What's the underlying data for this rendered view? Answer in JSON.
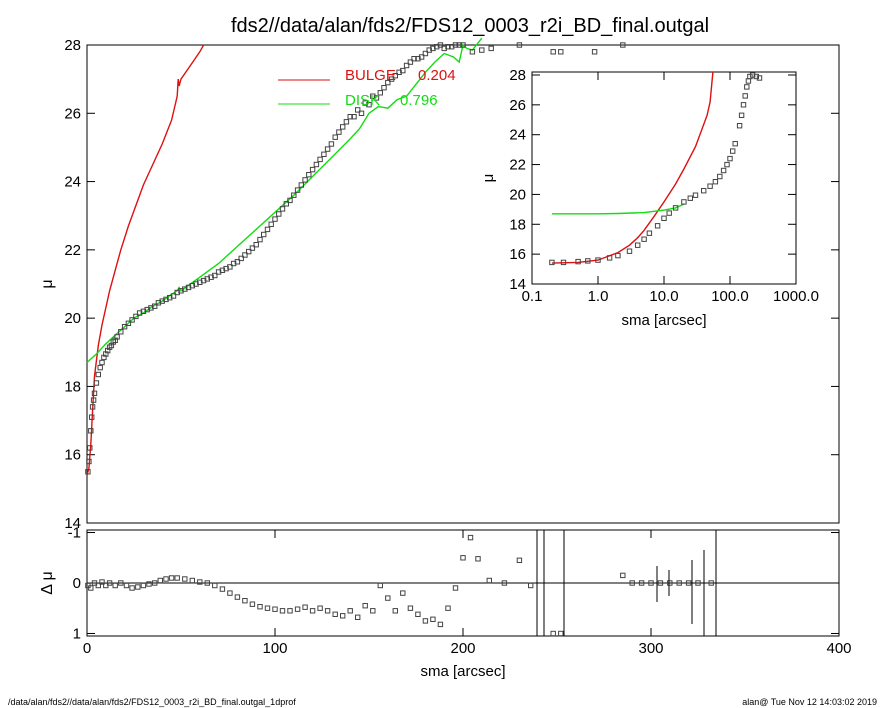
{
  "title": "fds2//data/alan/fds2/FDS12_0003_r2i_BD_final.outgal",
  "footer_left": "/data/alan/fds2//data/alan/fds2/FDS12_0003_r2i_BD_final.outgal_1dprof",
  "footer_right": "alan@  Tue Nov 12 14:03:02 2019",
  "colors": {
    "bulge": "#dd1111",
    "disk": "#11dd11",
    "data": "#444444",
    "axes": "#000000"
  },
  "chart_data": [
    {
      "type": "scatter",
      "panel": "main",
      "xlabel": "",
      "ylabel": "μ",
      "xlim": [
        0,
        400
      ],
      "ylim": [
        28,
        14
      ],
      "yticks": [
        "14",
        "16",
        "18",
        "20",
        "22",
        "24",
        "26",
        "28"
      ],
      "legend": [
        {
          "name": "BULGE",
          "value": "0.204",
          "color": "#dd1111"
        },
        {
          "name": "DISK",
          "value": "0.796",
          "color": "#11dd11"
        }
      ],
      "series": [
        {
          "name": "BULGE",
          "kind": "line",
          "color": "#dd1111",
          "x": [
            0,
            1,
            2,
            3,
            4,
            6,
            8,
            10,
            12,
            15,
            18,
            22,
            26,
            30,
            35,
            40,
            45,
            48,
            48.5,
            49,
            50,
            55,
            60,
            62
          ],
          "y": [
            15.4,
            15.6,
            16.3,
            17.3,
            18.3,
            19.2,
            19.8,
            20.3,
            20.8,
            21.4,
            22.0,
            22.7,
            23.3,
            23.9,
            24.5,
            25.1,
            25.8,
            26.5,
            27.0,
            26.8,
            27.0,
            27.4,
            27.8,
            28.0
          ]
        },
        {
          "name": "DISK",
          "kind": "line",
          "color": "#11dd11",
          "x": [
            0,
            5,
            10,
            15,
            20,
            25,
            30,
            35,
            40,
            45,
            48,
            49,
            50,
            55,
            60,
            70,
            80,
            90,
            100,
            110,
            120,
            130,
            140,
            145,
            150,
            155,
            160,
            165,
            170,
            175,
            180,
            185,
            190,
            195,
            198,
            200,
            202,
            205,
            210
          ],
          "y": [
            18.7,
            18.95,
            19.25,
            19.5,
            19.75,
            20.0,
            20.15,
            20.35,
            20.5,
            20.7,
            20.8,
            20.9,
            20.8,
            21.0,
            21.2,
            21.6,
            22.1,
            22.6,
            23.1,
            23.6,
            24.15,
            24.7,
            25.25,
            25.55,
            26.0,
            26.2,
            26.15,
            26.4,
            26.5,
            26.85,
            27.2,
            27.5,
            27.75,
            27.65,
            27.5,
            28.0,
            27.9,
            27.85,
            28.2
          ]
        },
        {
          "name": "data",
          "kind": "markers",
          "color": "#444444",
          "x": [
            0.5,
            1,
            1.5,
            2,
            2.5,
            3,
            3.5,
            4,
            5,
            6,
            7,
            8,
            9,
            10,
            11,
            12,
            13,
            14,
            15,
            16,
            18,
            20,
            22,
            24,
            26,
            28,
            30,
            32,
            34,
            36,
            38,
            40,
            42,
            44,
            46,
            48,
            50,
            52,
            54,
            56,
            58,
            60,
            62,
            64,
            66,
            68,
            70,
            72,
            74,
            76,
            78,
            80,
            82,
            84,
            86,
            88,
            90,
            92,
            94,
            96,
            98,
            100,
            102,
            104,
            106,
            108,
            110,
            112,
            114,
            116,
            118,
            120,
            122,
            124,
            126,
            128,
            130,
            132,
            134,
            136,
            138,
            140,
            142,
            144,
            146,
            148,
            150,
            152,
            154,
            156,
            158,
            160,
            162,
            164,
            166,
            168,
            170,
            172,
            174,
            176,
            178,
            180,
            182,
            184,
            186,
            188,
            190,
            192,
            194,
            196,
            198,
            200,
            205,
            210,
            215,
            230,
            248,
            252,
            270,
            285
          ],
          "y": [
            15.5,
            15.8,
            16.2,
            16.7,
            17.1,
            17.4,
            17.6,
            17.8,
            18.1,
            18.35,
            18.55,
            18.7,
            18.85,
            18.95,
            19.05,
            19.15,
            19.2,
            19.3,
            19.35,
            19.45,
            19.6,
            19.75,
            19.85,
            19.95,
            20.05,
            20.15,
            20.2,
            20.25,
            20.3,
            20.35,
            20.45,
            20.5,
            20.55,
            20.6,
            20.65,
            20.75,
            20.8,
            20.85,
            20.9,
            20.95,
            21.0,
            21.05,
            21.1,
            21.15,
            21.2,
            21.25,
            21.35,
            21.4,
            21.45,
            21.5,
            21.6,
            21.65,
            21.75,
            21.85,
            21.95,
            22.05,
            22.15,
            22.3,
            22.45,
            22.6,
            22.75,
            22.9,
            23.05,
            23.2,
            23.35,
            23.45,
            23.6,
            23.75,
            23.9,
            24.05,
            24.2,
            24.35,
            24.5,
            24.65,
            24.8,
            24.95,
            25.1,
            25.3,
            25.45,
            25.6,
            25.75,
            25.9,
            25.9,
            26.1,
            26.0,
            26.3,
            26.25,
            26.5,
            26.45,
            26.6,
            26.75,
            26.9,
            27.0,
            27.1,
            27.2,
            27.25,
            27.4,
            27.5,
            27.6,
            27.6,
            27.65,
            27.75,
            27.85,
            27.9,
            27.95,
            28.0,
            27.9,
            27.95,
            27.95,
            28.0,
            28.0,
            28.0,
            27.8,
            27.85,
            27.9,
            28.0,
            27.8,
            27.8,
            27.8,
            28.0
          ]
        }
      ]
    },
    {
      "type": "scatter",
      "panel": "residual",
      "xlabel": "sma [arcsec]",
      "ylabel": "Δ μ",
      "xlim": [
        0,
        400
      ],
      "ylim": [
        -1.05,
        1.05
      ],
      "xticks": [
        "0",
        "100",
        "200",
        "300",
        "400"
      ],
      "yticks": [
        "1",
        "0",
        "-1"
      ],
      "series": [
        {
          "name": "residuals",
          "kind": "markers",
          "color": "#444444",
          "x": [
            0.5,
            2,
            4,
            6,
            8,
            10,
            12,
            15,
            18,
            21,
            24,
            27,
            30,
            33,
            36,
            39,
            42,
            45,
            48,
            52,
            56,
            60,
            64,
            68,
            72,
            76,
            80,
            84,
            88,
            92,
            96,
            100,
            104,
            108,
            112,
            116,
            120,
            124,
            128,
            132,
            136,
            140,
            144,
            148,
            152,
            156,
            160,
            164,
            168,
            172,
            176,
            180,
            184,
            188,
            192,
            196,
            200,
            204,
            208,
            214,
            222,
            230,
            236,
            248,
            252,
            285,
            290,
            295,
            300,
            305,
            310,
            315,
            320,
            325,
            332
          ],
          "y": [
            0.05,
            0.1,
            0.0,
            0.05,
            -0.02,
            0.05,
            0.0,
            0.05,
            0.0,
            0.05,
            0.1,
            0.08,
            0.05,
            0.02,
            0.0,
            -0.05,
            -0.08,
            -0.1,
            -0.1,
            -0.08,
            -0.05,
            -0.02,
            0.0,
            0.05,
            0.12,
            0.2,
            0.28,
            0.35,
            0.42,
            0.47,
            0.5,
            0.52,
            0.55,
            0.55,
            0.52,
            0.48,
            0.55,
            0.5,
            0.55,
            0.62,
            0.65,
            0.55,
            0.68,
            0.45,
            0.55,
            0.05,
            0.3,
            0.55,
            0.2,
            0.5,
            0.62,
            0.75,
            0.72,
            0.82,
            0.5,
            0.1,
            -0.5,
            -0.9,
            -0.48,
            -0.05,
            0.0,
            -0.45,
            0.05,
            1.0,
            1.0,
            -0.15,
            0.0,
            0.0,
            0.0,
            0.0,
            0.0,
            0.0,
            0.0,
            0.0,
            0.0
          ]
        }
      ]
    },
    {
      "type": "scatter",
      "panel": "inset",
      "xlabel": "sma [arcsec]",
      "ylabel": "μ",
      "xscale": "log",
      "xlim": [
        0.1,
        1000
      ],
      "ylim": [
        28.2,
        14
      ],
      "xticks": [
        "0.1",
        "1.0",
        "10.0",
        "100.0",
        "1000.0"
      ],
      "yticks": [
        "14",
        "16",
        "18",
        "20",
        "22",
        "24",
        "26",
        "28"
      ],
      "series": [
        {
          "name": "BULGE",
          "kind": "line",
          "color": "#dd1111",
          "x": [
            0.2,
            0.5,
            1,
            2,
            3,
            4,
            5,
            7,
            10,
            15,
            20,
            30,
            45,
            50,
            55
          ],
          "y": [
            15.4,
            15.45,
            15.6,
            16.1,
            16.6,
            17.1,
            17.6,
            18.5,
            19.5,
            20.7,
            21.7,
            23.2,
            25.3,
            26.2,
            28.2
          ]
        },
        {
          "name": "DISK",
          "kind": "line",
          "color": "#11dd11",
          "x": [
            0.2,
            0.5,
            1,
            2,
            5,
            10,
            15,
            20
          ],
          "y": [
            18.7,
            18.7,
            18.7,
            18.72,
            18.78,
            18.95,
            19.1,
            19.35
          ]
        },
        {
          "name": "data",
          "kind": "markers",
          "color": "#444444",
          "x": [
            0.2,
            0.3,
            0.5,
            0.7,
            1,
            1.5,
            2,
            3,
            4,
            5,
            6,
            8,
            10,
            12,
            15,
            20,
            25,
            30,
            40,
            50,
            60,
            70,
            80,
            90,
            100,
            110,
            120,
            140,
            150,
            160,
            170,
            180,
            190,
            200,
            220,
            250,
            280
          ],
          "y": [
            15.45,
            15.45,
            15.5,
            15.55,
            15.6,
            15.75,
            15.9,
            16.2,
            16.6,
            17.0,
            17.4,
            17.9,
            18.4,
            18.75,
            19.1,
            19.5,
            19.75,
            19.95,
            20.25,
            20.55,
            20.85,
            21.2,
            21.6,
            22.0,
            22.4,
            22.9,
            23.4,
            24.6,
            25.3,
            26.0,
            26.6,
            27.2,
            27.6,
            27.9,
            28.0,
            27.9,
            27.8
          ]
        }
      ]
    }
  ]
}
